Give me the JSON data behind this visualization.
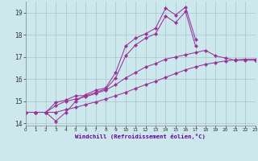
{
  "xlabel": "Windchill (Refroidissement éolien,°C)",
  "bg_color": "#cce8ec",
  "grid_color": "#aac4cc",
  "line_color": "#993399",
  "axis_label_color": "#660099",
  "xmin": 0,
  "xmax": 23,
  "ymin": 13.9,
  "ymax": 19.5,
  "yticks": [
    14,
    15,
    16,
    17,
    18,
    19
  ],
  "xticks": [
    0,
    1,
    2,
    3,
    4,
    5,
    6,
    7,
    8,
    9,
    10,
    11,
    12,
    13,
    14,
    15,
    16,
    17,
    18,
    19,
    20,
    21,
    22,
    23
  ],
  "line1_x": [
    0,
    1,
    2,
    3,
    4,
    5,
    6,
    7,
    8,
    9,
    10,
    11,
    12,
    13,
    14,
    15,
    16,
    17
  ],
  "line1_y": [
    14.5,
    14.5,
    14.5,
    14.1,
    14.5,
    15.0,
    15.3,
    15.5,
    15.6,
    16.3,
    17.5,
    17.85,
    18.05,
    18.3,
    19.2,
    18.9,
    19.25,
    17.8
  ],
  "line2_x": [
    0,
    1,
    2,
    3,
    4,
    5,
    6,
    7,
    8,
    9,
    10,
    11,
    12,
    13,
    14,
    15,
    16,
    17
  ],
  "line2_y": [
    14.5,
    14.5,
    14.5,
    14.95,
    15.05,
    15.25,
    15.25,
    15.4,
    15.55,
    16.05,
    17.05,
    17.55,
    17.85,
    18.05,
    18.85,
    18.55,
    19.05,
    17.5
  ],
  "line3_x": [
    0,
    1,
    2,
    3,
    4,
    5,
    6,
    7,
    8,
    9,
    10,
    11,
    12,
    13,
    14,
    15,
    16,
    17,
    18,
    19,
    20,
    21,
    22,
    23
  ],
  "line3_y": [
    14.5,
    14.5,
    14.5,
    14.8,
    15.0,
    15.1,
    15.2,
    15.35,
    15.5,
    15.75,
    16.05,
    16.3,
    16.55,
    16.7,
    16.9,
    17.0,
    17.1,
    17.2,
    17.3,
    17.05,
    16.95,
    16.85,
    16.85,
    16.85
  ],
  "line4_x": [
    0,
    1,
    2,
    3,
    4,
    5,
    6,
    7,
    8,
    9,
    10,
    11,
    12,
    13,
    14,
    15,
    16,
    17,
    18,
    19,
    20,
    21,
    22,
    23
  ],
  "line4_y": [
    14.5,
    14.5,
    14.5,
    14.5,
    14.62,
    14.72,
    14.85,
    14.97,
    15.1,
    15.25,
    15.4,
    15.58,
    15.75,
    15.9,
    16.08,
    16.25,
    16.42,
    16.55,
    16.67,
    16.75,
    16.82,
    16.87,
    16.9,
    16.9
  ]
}
